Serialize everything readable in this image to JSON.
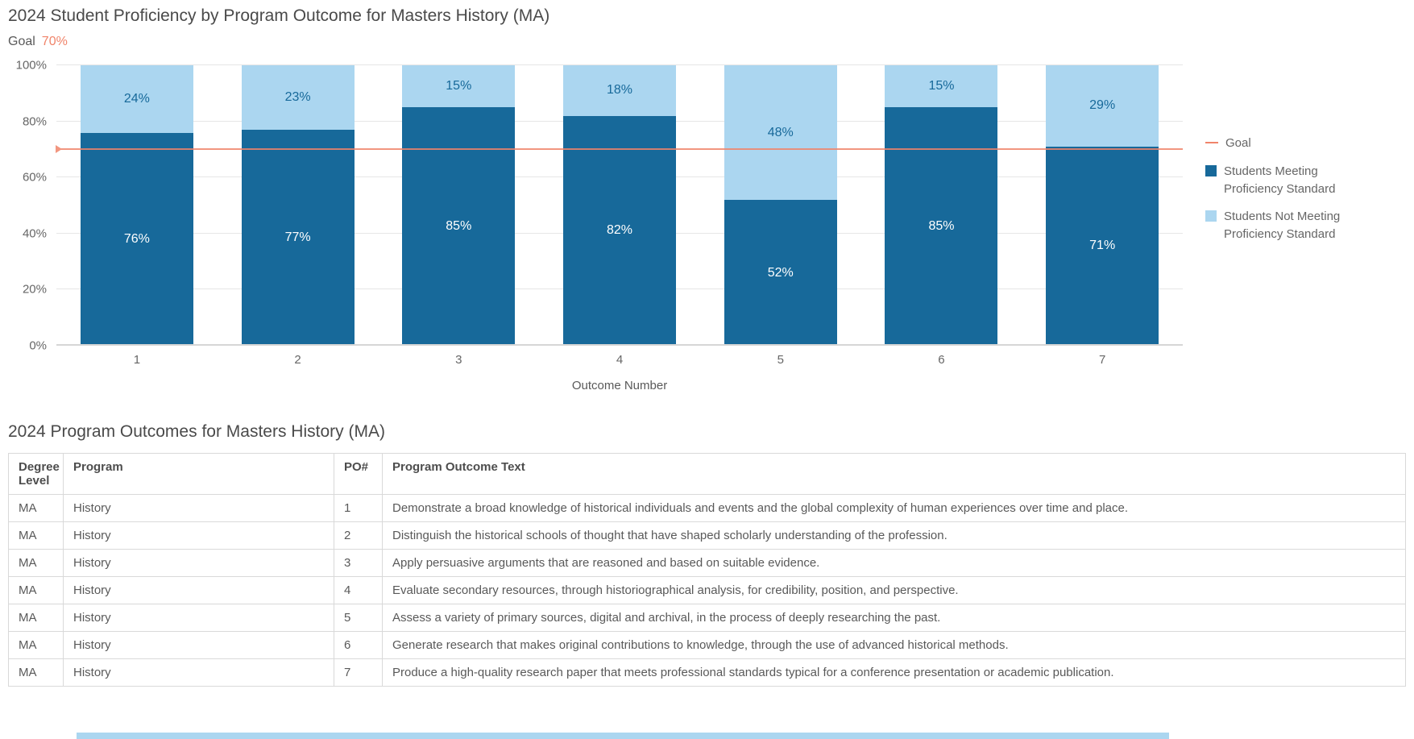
{
  "chart": {
    "title": "2024 Student Proficiency by Program Outcome for Masters History (MA)",
    "goal_label": "Goal",
    "goal_value": "70%",
    "legend": {
      "goal": "Goal"
    },
    "colors": {
      "meeting": "#17699a",
      "not_meeting": "#abd6f0",
      "goal": "#f0846a",
      "axis_text": "#666666"
    }
  },
  "chart_data": {
    "type": "bar",
    "stacked": true,
    "title": "2024 Student Proficiency by Program Outcome for Masters History (MA)",
    "categories": [
      "1",
      "2",
      "3",
      "4",
      "5",
      "6",
      "7"
    ],
    "series": [
      {
        "name": "Students Meeting Proficiency Standard",
        "color": "#17699a",
        "values": [
          76,
          77,
          85,
          82,
          52,
          85,
          71
        ]
      },
      {
        "name": "Students Not Meeting Proficiency Standard",
        "color": "#abd6f0",
        "values": [
          24,
          23,
          15,
          18,
          48,
          15,
          29
        ]
      }
    ],
    "goal": 70,
    "goal_color": "#f0846a",
    "xlabel": "Outcome Number",
    "ylabel": "",
    "ylim": [
      0,
      100
    ],
    "yticks": [
      "0%",
      "20%",
      "40%",
      "60%",
      "80%",
      "100%"
    ],
    "grid": true,
    "legend_position": "right",
    "data_labels": "percent"
  },
  "table": {
    "title": "2024 Program Outcomes for Masters History (MA)",
    "columns": [
      "Degree Level",
      "Program",
      "PO#",
      "Program Outcome Text"
    ],
    "rows": [
      [
        "MA",
        "History",
        "1",
        "Demonstrate a broad knowledge of historical individuals and events and the global complexity of human experiences over time and place."
      ],
      [
        "MA",
        "History",
        "2",
        "Distinguish the historical schools of thought that have shaped scholarly understanding of the profession."
      ],
      [
        "MA",
        "History",
        "3",
        "Apply persuasive arguments that are reasoned and based on suitable evidence."
      ],
      [
        "MA",
        "History",
        "4",
        "Evaluate secondary resources, through historiographical analysis, for credibility, position, and perspective."
      ],
      [
        "MA",
        "History",
        "5",
        "Assess a variety of primary sources, digital and archival, in the process of deeply researching the past."
      ],
      [
        "MA",
        "History",
        "6",
        "Generate research that makes original contributions to knowledge, through the use of advanced historical methods."
      ],
      [
        "MA",
        "History",
        "7",
        "Produce a high-quality research paper that meets professional standards typical for a conference presentation or academic publication."
      ]
    ]
  }
}
